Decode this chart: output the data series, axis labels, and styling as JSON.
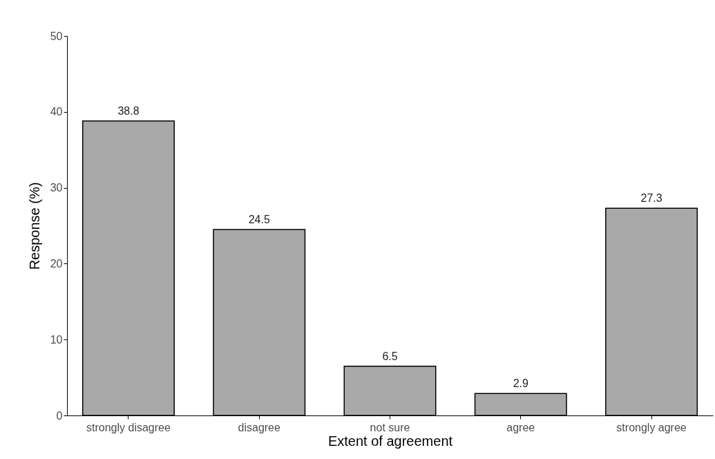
{
  "chart_data": {
    "type": "bar",
    "xlabel": "Extent of agreement",
    "ylabel": "Response (%)",
    "categories": [
      "strongly disagree",
      "disagree",
      "not sure",
      "agree",
      "strongly agree"
    ],
    "values": [
      38.8,
      24.5,
      6.5,
      2.9,
      27.3
    ],
    "color": "#a9a9a9",
    "ylim": [
      0,
      50
    ],
    "yticks": [
      0,
      10,
      20,
      30,
      40,
      50
    ],
    "grid": false,
    "data_labels": true
  }
}
